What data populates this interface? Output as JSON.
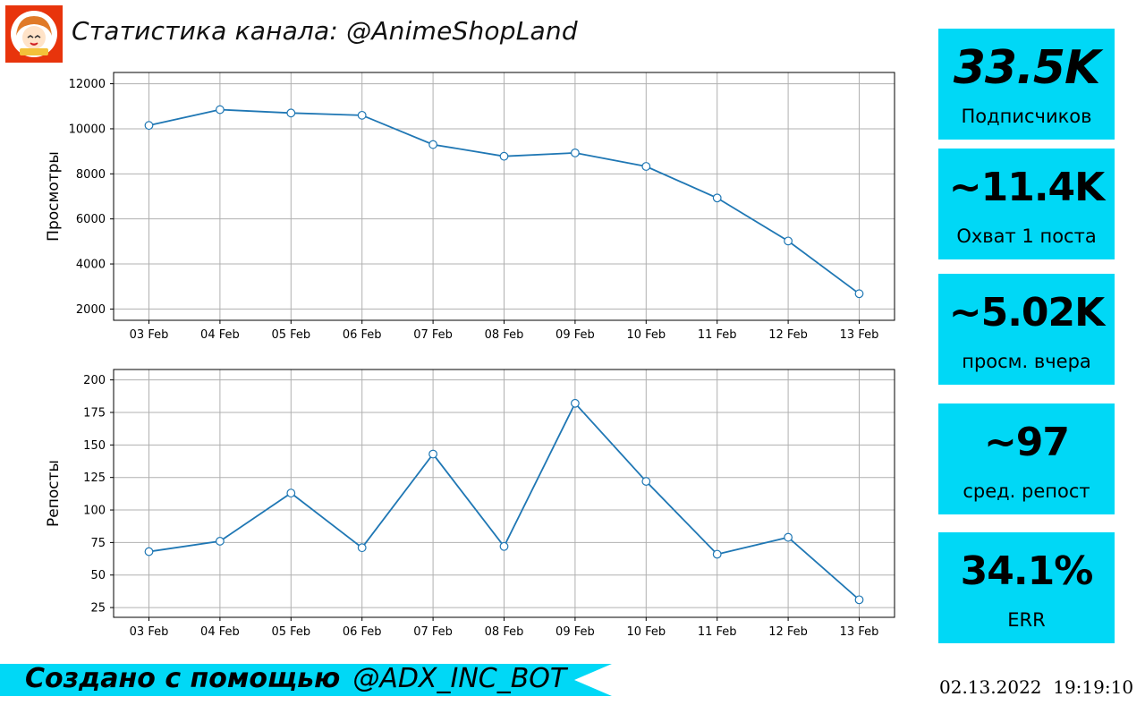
{
  "header": {
    "title": "Статистика канала: @AnimeShopLand"
  },
  "stats": [
    {
      "value": "33.5K",
      "label": "Подписчиков"
    },
    {
      "value": "~11.4K",
      "label": "Охват 1 поста"
    },
    {
      "value": "~5.02K",
      "label": "просм. вчера"
    },
    {
      "value": "~97",
      "label": "сред. репост"
    },
    {
      "value": "34.1%",
      "label": "ERR"
    }
  ],
  "footer": {
    "banner_prefix": "Создано с помощью",
    "banner_bot": "@ADX_INC_BOT",
    "timestamp": "02.13.2022  19:19:10"
  },
  "colors": {
    "line": "#1f77b4",
    "card_bg": "#00d8f6",
    "avatar_bg": "#e8340c",
    "grid": "#b0b0b0"
  },
  "chart_data": [
    {
      "type": "line",
      "ylabel": "Просмотры",
      "categories": [
        "03 Feb",
        "04 Feb",
        "05 Feb",
        "06 Feb",
        "07 Feb",
        "08 Feb",
        "09 Feb",
        "10 Feb",
        "11 Feb",
        "12 Feb",
        "13 Feb"
      ],
      "values": [
        10150,
        10850,
        10700,
        10600,
        9300,
        8780,
        8930,
        8330,
        6930,
        5020,
        2680
      ],
      "ylim": [
        1500,
        12500
      ],
      "yticks": [
        2000,
        4000,
        6000,
        8000,
        10000,
        12000
      ],
      "grid": true
    },
    {
      "type": "line",
      "ylabel": "Репосты",
      "categories": [
        "03 Feb",
        "04 Feb",
        "05 Feb",
        "06 Feb",
        "07 Feb",
        "08 Feb",
        "09 Feb",
        "10 Feb",
        "11 Feb",
        "12 Feb",
        "13 Feb"
      ],
      "values": [
        68,
        76,
        113,
        71,
        143,
        72,
        182,
        122,
        66,
        79,
        31
      ],
      "ylim": [
        17.5,
        208
      ],
      "yticks": [
        25,
        50,
        75,
        100,
        125,
        150,
        175,
        200
      ],
      "grid": true
    }
  ]
}
